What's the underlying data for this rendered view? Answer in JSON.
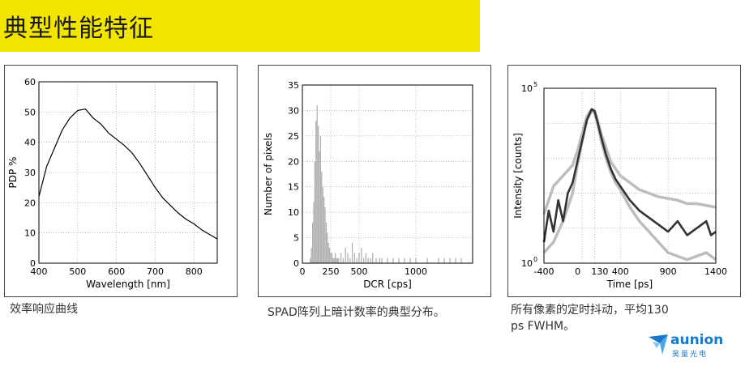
{
  "header": {
    "title": "典型性能特征",
    "accent_color": "#f2e500"
  },
  "captions": {
    "c1": "效率响应曲线",
    "c2": "SPAD阵列上暗计数率的典型分布。",
    "c3_line1": "所有像素的定时抖动，平均130",
    "c3_line2": "ps FWHM。"
  },
  "logo": {
    "name": "aunion",
    "sub": "昊量光电",
    "color": "#1a78c8"
  },
  "chart_data": [
    {
      "type": "line",
      "xlabel": "Wavelength [nm]",
      "ylabel": "PDP %",
      "xlim": [
        400,
        860
      ],
      "ylim": [
        0,
        60
      ],
      "xticks": [
        400,
        500,
        600,
        700,
        800
      ],
      "yticks": [
        0,
        10,
        20,
        30,
        40,
        50,
        60
      ],
      "grid": true,
      "series": [
        {
          "x": [
            400,
            420,
            440,
            460,
            480,
            500,
            520,
            540,
            560,
            580,
            600,
            620,
            640,
            660,
            680,
            700,
            720,
            740,
            760,
            780,
            800,
            820,
            840,
            860
          ],
          "values": [
            22,
            32,
            38,
            44,
            48,
            50.5,
            51,
            48,
            46,
            43,
            41,
            39,
            36.5,
            33,
            29,
            25,
            21.5,
            19,
            16.5,
            14.5,
            13,
            11,
            9.5,
            8
          ]
        }
      ]
    },
    {
      "type": "bar",
      "xlabel": "DCR [cps]",
      "ylabel": "Number of pixels",
      "xlim": [
        0,
        1500
      ],
      "ylim": [
        0,
        35
      ],
      "xticks": [
        0,
        250,
        500,
        1000
      ],
      "yticks": [
        0,
        5,
        10,
        15,
        20,
        25,
        30,
        35
      ],
      "grid": true,
      "bar_color": "#b0b0b0",
      "bins": {
        "x": [
          70,
          80,
          90,
          100,
          110,
          120,
          130,
          140,
          150,
          160,
          170,
          180,
          190,
          200,
          210,
          220,
          230,
          240,
          250,
          260,
          270,
          280,
          290,
          300,
          310,
          320,
          340,
          360,
          380,
          400,
          420,
          440,
          460,
          480,
          500,
          520,
          540,
          560,
          580,
          600,
          620,
          650,
          680,
          700,
          750,
          800,
          850,
          900,
          950,
          1000,
          1100,
          1200,
          1250,
          1300,
          1350,
          1400
        ],
        "values": [
          1,
          3,
          8,
          12,
          20,
          28,
          31,
          27,
          22,
          25,
          18,
          15,
          13,
          11,
          8,
          6,
          4,
          3,
          2,
          2,
          1,
          1,
          2,
          1,
          1,
          1,
          2,
          1,
          3,
          2,
          1,
          4,
          2,
          1,
          2,
          3,
          1,
          2,
          1,
          1,
          2,
          1,
          1,
          1,
          1,
          1,
          1,
          1,
          1,
          1,
          1,
          1,
          1,
          1,
          1,
          1
        ]
      }
    },
    {
      "type": "line",
      "xlabel": "Time [ps]",
      "ylabel": "Intensity [counts]",
      "xlim": [
        -400,
        1400
      ],
      "ylim_log": [
        0,
        5
      ],
      "xticks": [
        -400,
        0,
        130,
        400,
        900,
        1400
      ],
      "ytick_labels": [
        {
          "base": "10",
          "exp": "0",
          "at": 0
        },
        {
          "base": "10",
          "exp": "5",
          "at": 5
        }
      ],
      "grid": true,
      "series": [
        {
          "color": "#bdbdbd",
          "x": [
            -400,
            -300,
            -200,
            -100,
            -50,
            0,
            50,
            100,
            130,
            160,
            200,
            250,
            300,
            350,
            400,
            500,
            600,
            700,
            800,
            900,
            1000,
            1100,
            1200,
            1300,
            1400
          ],
          "values": [
            1.4,
            2.2,
            2.5,
            2.8,
            3.2,
            3.7,
            4.2,
            4.4,
            4.35,
            4.1,
            3.7,
            3.3,
            2.9,
            2.7,
            2.5,
            2.3,
            2.1,
            2.0,
            1.9,
            1.85,
            1.8,
            1.7,
            1.7,
            1.65,
            1.6
          ]
        },
        {
          "color": "#bdbdbd",
          "x": [
            -400,
            -300,
            -200,
            -100,
            -50,
            0,
            50,
            100,
            130,
            160,
            200,
            250,
            300,
            350,
            400,
            500,
            600,
            700,
            800,
            900,
            1000,
            1100,
            1200,
            1300,
            1400
          ],
          "values": [
            0.3,
            0.6,
            1.2,
            2.0,
            2.8,
            3.5,
            4.1,
            4.35,
            4.3,
            4.0,
            3.5,
            3.0,
            2.6,
            2.3,
            2.1,
            1.6,
            1.2,
            0.9,
            0.6,
            0.3,
            0.2,
            0.1,
            0.2,
            0.3,
            0.1
          ]
        },
        {
          "color": "#333333",
          "x": [
            -400,
            -350,
            -300,
            -250,
            -200,
            -150,
            -100,
            -50,
            0,
            50,
            100,
            130,
            160,
            200,
            250,
            300,
            350,
            400,
            450,
            500,
            600,
            700,
            800,
            900,
            1000,
            1100,
            1200,
            1300,
            1350,
            1400
          ],
          "values": [
            0.6,
            1.5,
            0.9,
            1.8,
            1.2,
            2.0,
            2.3,
            2.9,
            3.5,
            4.1,
            4.4,
            4.35,
            4.05,
            3.6,
            3.1,
            2.7,
            2.4,
            2.2,
            2.0,
            1.8,
            1.5,
            1.3,
            1.1,
            0.9,
            1.2,
            0.8,
            1.0,
            1.2,
            0.8,
            0.9
          ]
        }
      ]
    }
  ]
}
